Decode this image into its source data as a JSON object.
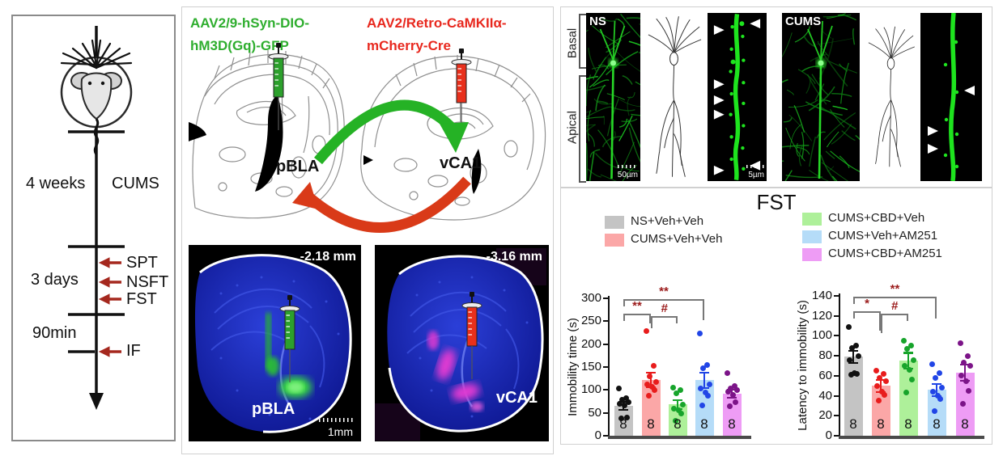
{
  "timeline_panel": {
    "duration1": "4 weeks",
    "condition": "CUMS",
    "duration2": "3 days",
    "tests": [
      "SPT",
      "NSFT",
      "FST"
    ],
    "duration3": "90min",
    "assay": "IF"
  },
  "injection_panel": {
    "construct_green": [
      "AAV2/9-hSyn-DIO-",
      "hM3D(Gq)-GFP"
    ],
    "construct_red": [
      "AAV2/Retro-CaMKIIα-",
      "mCherry-Cre"
    ],
    "region_green": "pBLA",
    "region_red": "vCA1",
    "section_left": {
      "coordinate": "-2.18 mm",
      "region": "pBLA",
      "scale": "1mm"
    },
    "section_right": {
      "coordinate": "-3.16 mm",
      "region": "vCA1"
    },
    "colors": {
      "green": "#2fae2f",
      "red": "#e8281e"
    }
  },
  "spine_panel": {
    "group_left": "NS",
    "group_right": "CUMS",
    "axis_labels": [
      "Basal",
      "Apical"
    ],
    "scale_left": "50µm",
    "scale_right": "5µm"
  },
  "fst_panel": {
    "title": "FST",
    "sig_color": "#9b1b1b",
    "legend": [
      {
        "label": "NS+Veh+Veh",
        "color": "#c4c4c4"
      },
      {
        "label": "CUMS+Veh+Veh",
        "color": "#fba7a7"
      },
      {
        "label": "CUMS+CBD+Veh",
        "color": "#aef09a"
      },
      {
        "label": "CUMS+Veh+AM251",
        "color": "#b5dcf8"
      },
      {
        "label": "CUMS+CBD+AM251",
        "color": "#ee9cf5"
      }
    ]
  },
  "chart_data": [
    {
      "type": "bar",
      "title": "FST",
      "ylabel": "Immobility time (s)",
      "ylim": [
        0,
        300
      ],
      "yticks": [
        0,
        50,
        100,
        150,
        200,
        250,
        300
      ],
      "categories": [
        "NS+Veh+Veh",
        "CUMS+Veh+Veh",
        "CUMS+CBD+Veh",
        "CUMS+Veh+AM251",
        "CUMS+CBD+AM251"
      ],
      "values": [
        65,
        122,
        68,
        121,
        92
      ],
      "errors": [
        9,
        16,
        10,
        17,
        9
      ],
      "points": [
        [
          103,
          82,
          78,
          74,
          70,
          67,
          40,
          38
        ],
        [
          228,
          153,
          130,
          118,
          112,
          107,
          99,
          87
        ],
        [
          105,
          100,
          93,
          68,
          60,
          55,
          48,
          32
        ],
        [
          223,
          155,
          148,
          112,
          104,
          95,
          87,
          66
        ],
        [
          136,
          108,
          104,
          100,
          96,
          90,
          73,
          64
        ]
      ],
      "n_labels": [
        "8",
        "8",
        "8",
        "8",
        "8"
      ],
      "bar_colors": [
        "#c4c4c4",
        "#fba7a7",
        "#aef09a",
        "#b5dcf8",
        "#ee9cf5"
      ],
      "dot_colors": [
        "#111111",
        "#e81c1c",
        "#17a42b",
        "#2145e6",
        "#7c1488"
      ],
      "significance": [
        {
          "from": 0,
          "to": 1,
          "label": "**"
        },
        {
          "from": 1,
          "to": 2,
          "label": "#"
        },
        {
          "from": 0,
          "to": 3,
          "label": "**"
        }
      ]
    },
    {
      "type": "bar",
      "title": "FST",
      "ylabel": "Latency to immobility (s)",
      "ylim": [
        0,
        140
      ],
      "yticks": [
        0,
        20,
        40,
        60,
        80,
        100,
        120,
        140
      ],
      "categories": [
        "NS+Veh+Veh",
        "CUMS+Veh+Veh",
        "CUMS+CBD+Veh",
        "CUMS+Veh+AM251",
        "CUMS+CBD+AM251"
      ],
      "values": [
        79,
        50,
        75,
        46,
        63
      ],
      "errors": [
        6,
        6,
        8,
        6,
        8
      ],
      "points": [
        [
          109,
          90,
          88,
          80,
          76,
          63,
          62,
          61
        ],
        [
          65,
          62,
          58,
          55,
          50,
          44,
          41,
          35
        ],
        [
          95,
          90,
          87,
          76,
          70,
          66,
          56,
          43
        ],
        [
          72,
          63,
          58,
          48,
          44,
          40,
          37,
          25
        ],
        [
          93,
          80,
          73,
          70,
          60,
          55,
          45,
          32
        ]
      ],
      "n_labels": [
        "8",
        "8",
        "8",
        "8",
        "8"
      ],
      "bar_colors": [
        "#c4c4c4",
        "#fba7a7",
        "#aef09a",
        "#b5dcf8",
        "#ee9cf5"
      ],
      "dot_colors": [
        "#111111",
        "#e81c1c",
        "#17a42b",
        "#2145e6",
        "#7c1488"
      ],
      "significance": [
        {
          "from": 0,
          "to": 1,
          "label": "*"
        },
        {
          "from": 1,
          "to": 2,
          "label": "#"
        },
        {
          "from": 0,
          "to": 3,
          "label": "**"
        }
      ]
    }
  ]
}
